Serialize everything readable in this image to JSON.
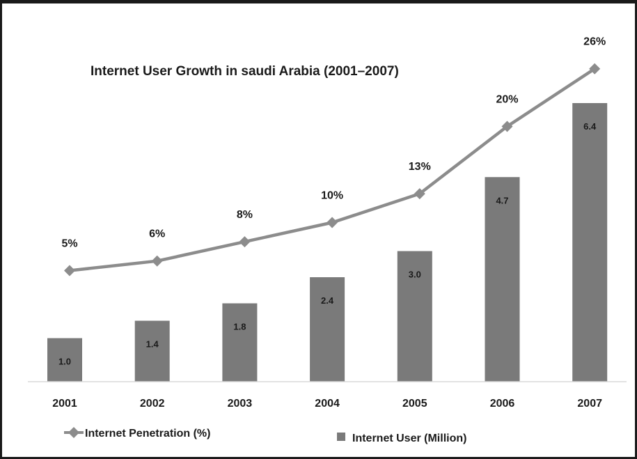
{
  "chart_data": {
    "type": "bar",
    "title": "Internet User Growth in saudi Arabia (2001–2007)",
    "categories": [
      "2001",
      "2002",
      "2003",
      "2004",
      "2005",
      "2006",
      "2007"
    ],
    "series": [
      {
        "name": "Internet User (Million)",
        "type": "bar",
        "values": [
          1.0,
          1.4,
          1.8,
          2.4,
          3.0,
          4.7,
          6.4
        ],
        "labels": [
          "1.0",
          "1.4",
          "1.8",
          "2.4",
          "3.0",
          "4.7",
          "6.4"
        ],
        "color": "#7a7a7a"
      },
      {
        "name": "Internet Penetration (%)",
        "type": "line",
        "values": [
          5,
          6,
          8,
          10,
          13,
          20,
          26
        ],
        "labels": [
          "5%",
          "6%",
          "8%",
          "10%",
          "13%",
          "20%",
          "26%"
        ],
        "color": "#8c8c8c"
      }
    ],
    "grid": false,
    "legend": "bottom"
  }
}
